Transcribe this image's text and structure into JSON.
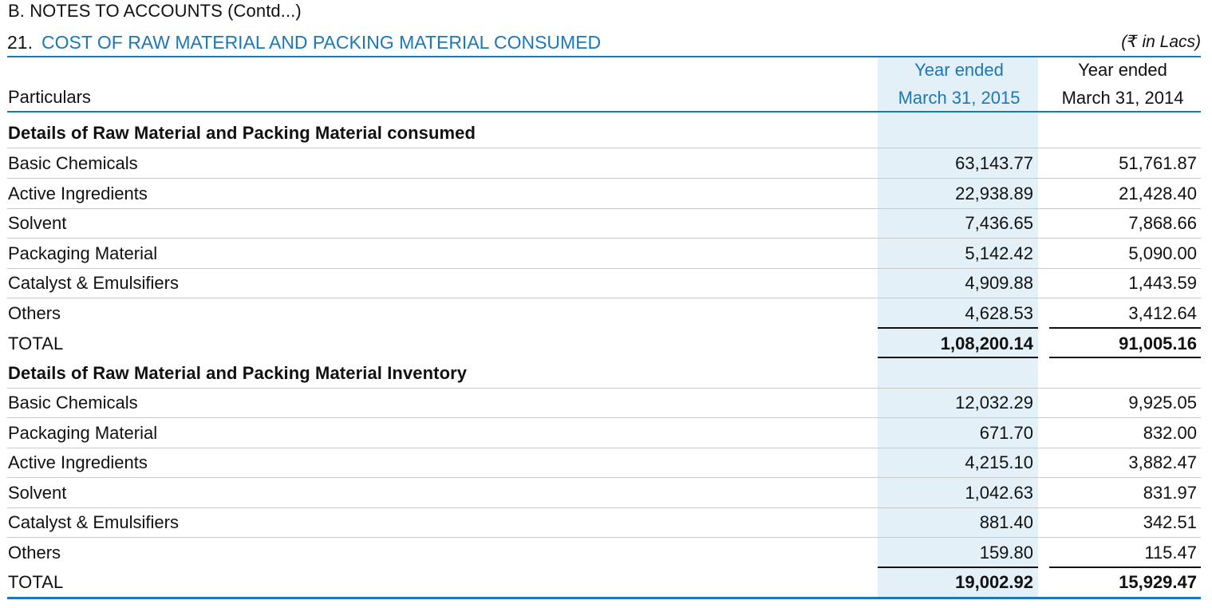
{
  "header": {
    "section": "B.   NOTES TO ACCOUNTS (Contd...)"
  },
  "note": {
    "number": "21.",
    "title": "COST OF RAW MATERIAL AND PACKING MATERIAL CONSUMED",
    "unit": "(₹ in Lacs)"
  },
  "columns": {
    "particulars": "Particulars",
    "current_line1": "Year ended",
    "current_line2": "March 31, 2015",
    "previous_line1": "Year ended",
    "previous_line2": "March 31, 2014"
  },
  "colors": {
    "accent": "#1a78b8",
    "shade": "#e3f0f7"
  },
  "consumed": {
    "heading": "Details of Raw Material and Packing Material consumed",
    "rows": [
      {
        "label": "Basic Chemicals",
        "current": "63,143.77",
        "previous": "51,761.87"
      },
      {
        "label": "Active Ingredients",
        "current": "22,938.89",
        "previous": "21,428.40"
      },
      {
        "label": "Solvent",
        "current": "7,436.65",
        "previous": "7,868.66"
      },
      {
        "label": "Packaging Material",
        "current": "5,142.42",
        "previous": "5,090.00"
      },
      {
        "label": "Catalyst & Emulsifiers",
        "current": "4,909.88",
        "previous": "1,443.59"
      },
      {
        "label": "Others",
        "current": "4,628.53",
        "previous": "3,412.64"
      }
    ],
    "total": {
      "label": "TOTAL",
      "current": "1,08,200.14",
      "previous": "91,005.16"
    }
  },
  "inventory": {
    "heading": "Details of Raw Material and Packing Material Inventory",
    "rows": [
      {
        "label": "Basic Chemicals",
        "current": "12,032.29",
        "previous": "9,925.05"
      },
      {
        "label": "Packaging Material",
        "current": "671.70",
        "previous": "832.00"
      },
      {
        "label": "Active Ingredients",
        "current": "4,215.10",
        "previous": "3,882.47"
      },
      {
        "label": "Solvent",
        "current": "1,042.63",
        "previous": "831.97"
      },
      {
        "label": "Catalyst & Emulsifiers",
        "current": "881.40",
        "previous": "342.51"
      },
      {
        "label": "Others",
        "current": "159.80",
        "previous": "115.47"
      }
    ],
    "total": {
      "label": "TOTAL",
      "current": "19,002.92",
      "previous": "15,929.47"
    }
  }
}
